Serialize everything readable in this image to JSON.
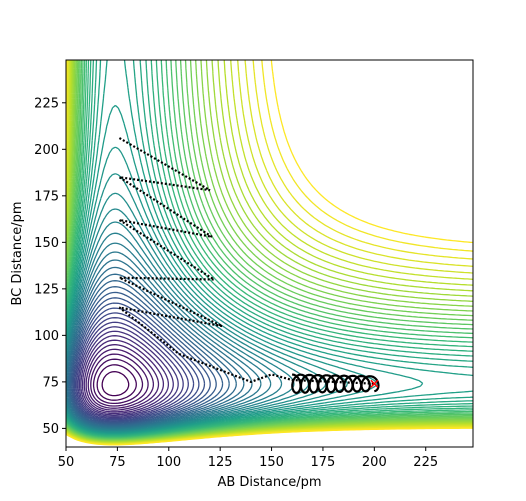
{
  "chart_data": {
    "type": "contour",
    "title": "",
    "xlabel": "AB Distance/pm",
    "ylabel": "BC Distance/pm",
    "xlim": [
      50,
      248
    ],
    "ylim": [
      40,
      248
    ],
    "x_ticks": [
      50,
      75,
      100,
      125,
      150,
      175,
      200,
      225
    ],
    "y_ticks": [
      50,
      75,
      100,
      125,
      150,
      175,
      200,
      225
    ],
    "x_tick_labels": [
      "50",
      "75",
      "100",
      "125",
      "150",
      "175",
      "200",
      "225"
    ],
    "y_tick_labels": [
      "50",
      "75",
      "100",
      "125",
      "150",
      "175",
      "200",
      "225"
    ],
    "colormap": "viridis",
    "colormap_colors": [
      "#440154",
      "#482878",
      "#3e4989",
      "#31688e",
      "#26828e",
      "#1f9e89",
      "#35b779",
      "#6ece58",
      "#b5de2b",
      "#fde725"
    ],
    "grid": false,
    "legend": "none",
    "trajectory_color": "#000000",
    "marker": {
      "x": 200,
      "y": 74,
      "symbol": "x",
      "color": "#ff0000"
    },
    "trajectory_waypoints": [
      {
        "x": 76,
        "y": 206
      },
      {
        "x": 120,
        "y": 178
      },
      {
        "x": 76,
        "y": 185
      },
      {
        "x": 121,
        "y": 153
      },
      {
        "x": 76,
        "y": 162
      },
      {
        "x": 122,
        "y": 130
      },
      {
        "x": 76,
        "y": 131
      },
      {
        "x": 126,
        "y": 105
      },
      {
        "x": 76,
        "y": 115
      },
      {
        "x": 105,
        "y": 90
      },
      {
        "x": 140,
        "y": 75
      },
      {
        "x": 150,
        "y": 79
      },
      {
        "x": 160,
        "y": 76
      },
      {
        "x": 200,
        "y": 74
      }
    ]
  }
}
